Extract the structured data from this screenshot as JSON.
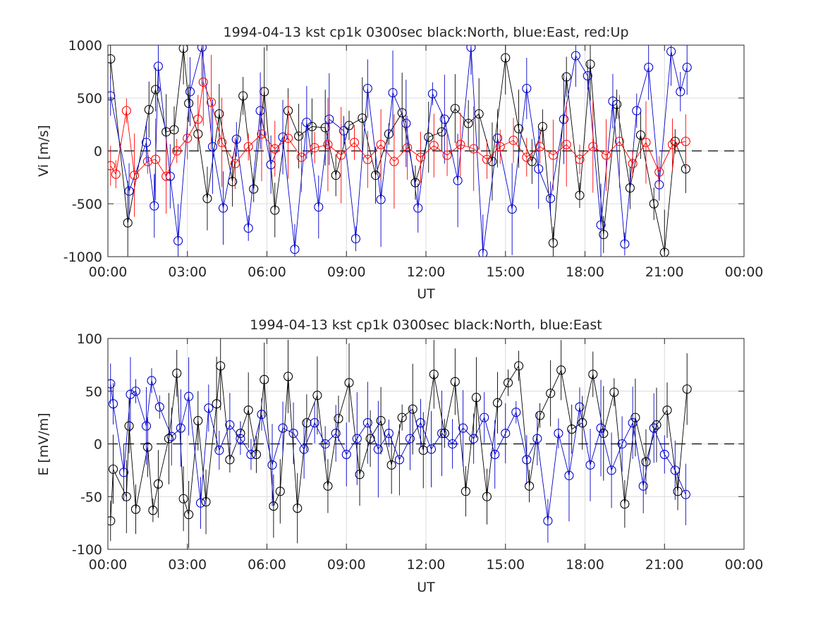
{
  "chart_data": [
    {
      "type": "line",
      "title": "1994-04-13 kst cp1k 0300sec black:North, blue:East, red:Up",
      "xlabel": "UT",
      "ylabel": "Vi [m/s]",
      "xlim": [
        0,
        24
      ],
      "ylim": [
        -1000,
        1000
      ],
      "x_ticks": [
        "00:00",
        "03:00",
        "06:00",
        "09:00",
        "12:00",
        "15:00",
        "18:00",
        "21:00",
        "00:00"
      ],
      "y_ticks": [
        "-1000",
        "-500",
        "0",
        "500",
        "1000"
      ],
      "grid": true,
      "markers": "open-circle",
      "error_bars": true,
      "series": [
        {
          "name": "North",
          "color": "#000000",
          "x": [
            0.1,
            0.75,
            1.55,
            1.8,
            2.2,
            2.5,
            2.85,
            3.05,
            3.4,
            3.75,
            4.2,
            4.7,
            5.1,
            5.5,
            5.9,
            6.3,
            6.8,
            7.2,
            7.7,
            8.2,
            8.6,
            9.1,
            9.6,
            10.1,
            10.6,
            11.1,
            11.6,
            12.1,
            12.6,
            13.1,
            13.6,
            14.0,
            14.5,
            15.0,
            15.5,
            16.0,
            16.4,
            16.8,
            17.3,
            17.8,
            18.2,
            18.7,
            19.2,
            19.7,
            20.1,
            20.6,
            21.0,
            21.4,
            21.8
          ],
          "y": [
            870,
            -680,
            390,
            580,
            180,
            200,
            970,
            450,
            160,
            -450,
            350,
            -290,
            520,
            -360,
            560,
            -560,
            380,
            140,
            230,
            220,
            -230,
            240,
            310,
            -230,
            160,
            360,
            -300,
            130,
            180,
            400,
            260,
            350,
            -100,
            880,
            210,
            -100,
            230,
            -870,
            700,
            -420,
            820,
            -790,
            440,
            -350,
            150,
            -500,
            -960,
            90,
            -170
          ]
        },
        {
          "name": "East",
          "color": "#0000cc",
          "x": [
            0.1,
            0.8,
            1.45,
            1.75,
            1.9,
            2.35,
            2.65,
            3.1,
            3.55,
            3.95,
            4.35,
            4.85,
            5.3,
            5.75,
            6.15,
            6.6,
            7.05,
            7.5,
            7.95,
            8.35,
            8.9,
            9.35,
            9.8,
            10.3,
            10.75,
            11.25,
            11.7,
            12.25,
            12.7,
            13.2,
            13.7,
            14.15,
            14.7,
            15.25,
            15.8,
            16.25,
            16.7,
            17.2,
            17.65,
            18.1,
            18.6,
            19.05,
            19.5,
            19.95,
            20.4,
            20.8,
            21.25,
            21.6,
            21.85
          ],
          "y": [
            520,
            -380,
            80,
            -520,
            800,
            -240,
            -850,
            560,
            980,
            40,
            -540,
            110,
            -730,
            380,
            -130,
            130,
            -930,
            270,
            -530,
            300,
            190,
            -830,
            590,
            -460,
            550,
            260,
            -540,
            540,
            300,
            -280,
            980,
            -970,
            120,
            -550,
            590,
            -170,
            -450,
            300,
            900,
            710,
            -700,
            470,
            -880,
            380,
            790,
            -320,
            940,
            560,
            790
          ]
        },
        {
          "name": "Up",
          "color": "#ff0000",
          "x": [
            0.1,
            0.3,
            0.7,
            1.0,
            1.5,
            1.8,
            2.2,
            2.6,
            3.0,
            3.4,
            3.6,
            3.9,
            4.3,
            4.8,
            5.3,
            5.8,
            6.3,
            6.8,
            7.3,
            7.8,
            8.3,
            8.8,
            9.3,
            9.8,
            10.3,
            10.8,
            11.3,
            11.8,
            12.3,
            12.8,
            13.3,
            13.8,
            14.3,
            14.8,
            15.3,
            15.8,
            16.3,
            16.8,
            17.3,
            17.8,
            18.3,
            18.8,
            19.3,
            19.8,
            20.3,
            20.8,
            21.3,
            21.8
          ],
          "y": [
            -140,
            -220,
            380,
            -230,
            -100,
            -80,
            -240,
            0,
            120,
            300,
            650,
            460,
            80,
            -120,
            40,
            160,
            20,
            120,
            -60,
            30,
            60,
            -40,
            80,
            -80,
            60,
            -100,
            30,
            -60,
            50,
            -40,
            60,
            20,
            -80,
            40,
            100,
            -60,
            40,
            -40,
            60,
            -80,
            40,
            -40,
            90,
            -120,
            80,
            -200,
            60,
            90
          ]
        }
      ]
    },
    {
      "type": "line",
      "title": "1994-04-13 kst cp1k 0300sec black:North, blue:East",
      "xlabel": "UT",
      "ylabel": "E [mV/m]",
      "xlim": [
        0,
        24
      ],
      "ylim": [
        -100,
        100
      ],
      "x_ticks": [
        "00:00",
        "03:00",
        "06:00",
        "09:00",
        "12:00",
        "15:00",
        "18:00",
        "21:00",
        "00:00"
      ],
      "y_ticks": [
        "-100",
        "-50",
        "0",
        "50",
        "100"
      ],
      "grid": true,
      "markers": "open-circle",
      "error_bars": true,
      "series": [
        {
          "name": "North",
          "color": "#000000",
          "x": [
            0.1,
            0.2,
            0.7,
            0.8,
            1.05,
            1.5,
            1.7,
            1.9,
            2.3,
            2.6,
            2.85,
            3.05,
            3.4,
            3.7,
            4.1,
            4.25,
            4.6,
            5.0,
            5.3,
            5.6,
            5.9,
            6.25,
            6.5,
            6.8,
            7.15,
            7.5,
            7.9,
            8.3,
            8.7,
            9.1,
            9.5,
            9.9,
            10.3,
            10.7,
            11.1,
            11.5,
            11.9,
            12.3,
            12.7,
            13.1,
            13.5,
            13.9,
            14.3,
            14.7,
            15.1,
            15.5,
            15.9,
            16.3,
            16.7,
            17.1,
            17.5,
            17.9,
            18.3,
            18.7,
            19.1,
            19.5,
            19.9,
            20.3,
            20.7,
            21.1,
            21.5,
            21.85
          ],
          "y": [
            -73,
            -24,
            -50,
            17,
            -62,
            -3,
            -63,
            -38,
            5,
            67,
            -52,
            -67,
            22,
            -55,
            38,
            74,
            -15,
            10,
            32,
            -10,
            61,
            -59,
            -45,
            64,
            -61,
            20,
            46,
            -40,
            24,
            58,
            -29,
            5,
            22,
            -20,
            25,
            33,
            -6,
            66,
            10,
            59,
            -45,
            44,
            -50,
            39,
            58,
            74,
            -40,
            27,
            48,
            70,
            14,
            20,
            66,
            10,
            49,
            -57,
            25,
            -17,
            18,
            32,
            -45,
            52
          ]
        },
        {
          "name": "East",
          "color": "#0000cc",
          "x": [
            0.1,
            0.2,
            0.6,
            0.85,
            1.05,
            1.45,
            1.65,
            1.95,
            2.4,
            2.75,
            3.05,
            3.5,
            3.8,
            4.2,
            4.6,
            5.0,
            5.4,
            5.8,
            6.2,
            6.6,
            7.0,
            7.4,
            7.8,
            8.2,
            8.6,
            9.0,
            9.4,
            9.8,
            10.2,
            10.6,
            11.0,
            11.4,
            11.8,
            12.2,
            12.6,
            13.0,
            13.4,
            13.8,
            14.2,
            14.6,
            15.0,
            15.4,
            15.8,
            16.2,
            16.6,
            17.0,
            17.4,
            17.8,
            18.2,
            18.6,
            19.0,
            19.4,
            19.8,
            20.2,
            20.6,
            21.0,
            21.4,
            21.8
          ],
          "y": [
            57,
            38,
            -27,
            47,
            50,
            17,
            60,
            35,
            7,
            15,
            45,
            -56,
            34,
            -6,
            18,
            5,
            -10,
            28,
            -20,
            15,
            10,
            -5,
            20,
            0,
            10,
            -10,
            5,
            20,
            -5,
            10,
            -15,
            5,
            20,
            -5,
            10,
            0,
            15,
            5,
            25,
            -10,
            10,
            30,
            -15,
            5,
            -73,
            10,
            -30,
            35,
            -20,
            15,
            -25,
            0,
            20,
            -40,
            15,
            -10,
            -25,
            -48
          ]
        }
      ]
    }
  ]
}
